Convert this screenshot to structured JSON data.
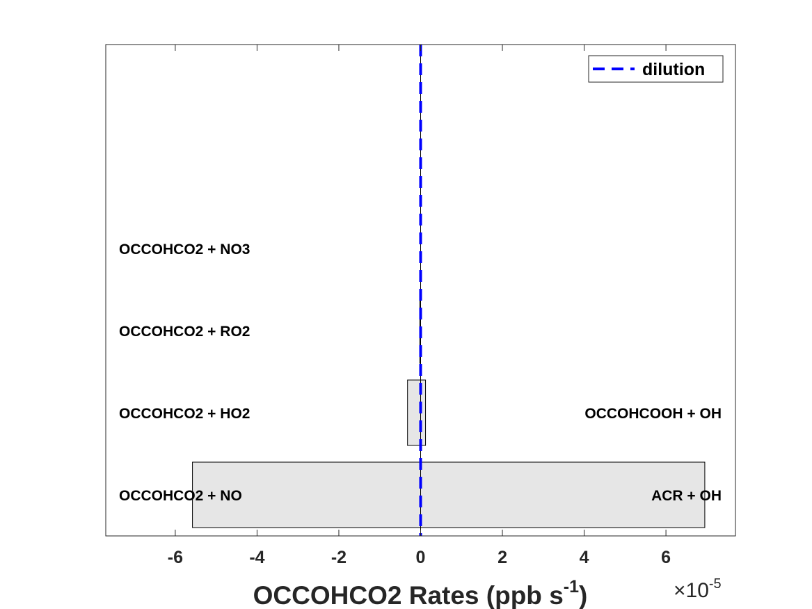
{
  "chart_data": {
    "type": "bar",
    "orientation": "horizontal",
    "stacked": true,
    "xlabel_main": "OCCOHCO2 Rates (ppb s",
    "xlabel_sup": "-1",
    "xlabel_close": ")",
    "x_multiplier_prefix": "×10",
    "x_multiplier_exp": "-5",
    "xlim": [
      -7.7,
      7.7
    ],
    "xticks": [
      -6,
      -4,
      -2,
      0,
      2,
      4,
      6
    ],
    "xtick_labels": [
      "-6",
      "-4",
      "-2",
      "0",
      "2",
      "4",
      "6"
    ],
    "rows": [
      {
        "loss_label": "OCCOHCO2 + NO",
        "production_label": "ACR + OH",
        "loss": -5.58,
        "production": 6.95
      },
      {
        "loss_label": "OCCOHCO2 + HO2",
        "production_label": "OCCOHCOOH + OH",
        "loss": -0.32,
        "production": 0.12
      },
      {
        "loss_label": "OCCOHCO2 + RO2",
        "production_label": "",
        "loss": -0.02,
        "production": 0.0
      },
      {
        "loss_label": "OCCOHCO2 + NO3",
        "production_label": "",
        "loss": 0.0,
        "production": 0.0
      }
    ],
    "dilution": 0.0,
    "legend": {
      "entries": [
        "dilution"
      ],
      "position": "top-right"
    },
    "colors": {
      "bar_fill": "#e6e6e6",
      "bar_edge": "#000000",
      "dilution": "#0000ff"
    },
    "grid": false
  }
}
